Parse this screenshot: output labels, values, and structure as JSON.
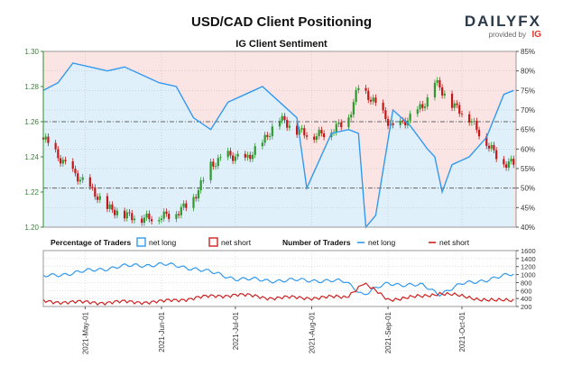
{
  "header": {
    "title": "USD/CAD Client Positioning",
    "logo_text": "DAILYFX",
    "provided_by": "provided by",
    "brand_mark": "IG"
  },
  "colors": {
    "long": "#3399ee",
    "short": "#cc2222",
    "long_zone": "#dff0fb",
    "short_zone": "#fbe4e4",
    "candle_up": "#2e9a2e",
    "candle_down": "#c41818",
    "price_axis": "#2e8b2e"
  },
  "chart_data": [
    {
      "type": "candlestick+line",
      "title": "IG Client Sentiment",
      "x_tick_labels": [
        "2021-May-01",
        "2021-Jun-01",
        "2021-Jul-01",
        "2021-Aug-01",
        "2021-Sep-01",
        "2021-Oct-01"
      ],
      "x_tick_dates": [
        "2021-05-01",
        "2021-06-01",
        "2021-07-01",
        "2021-08-01",
        "2021-09-01",
        "2021-10-01"
      ],
      "x_range": [
        "2021-04-14",
        "2021-10-23"
      ],
      "price_axis": {
        "side": "left",
        "ylim": [
          1.2,
          1.3
        ],
        "ticks": [
          "1.20",
          "1.22",
          "1.24",
          "1.26",
          "1.28",
          "1.30"
        ]
      },
      "percent_axis": {
        "side": "right",
        "ylim": [
          40,
          85
        ],
        "ticks": [
          "40%",
          "45%",
          "50%",
          "55%",
          "60%",
          "65%",
          "70%",
          "75%",
          "80%",
          "85%"
        ]
      },
      "reference_lines": {
        "dashed_percent": [
          50,
          67
        ]
      },
      "background": "light blue below 50% (net-long majority shading) up to the long line, light red above",
      "price_close_series": {
        "dates": [
          "2021-04-14",
          "2021-04-20",
          "2021-04-26",
          "2021-05-03",
          "2021-05-10",
          "2021-05-17",
          "2021-05-24",
          "2021-05-31",
          "2021-06-07",
          "2021-06-14",
          "2021-06-21",
          "2021-06-28",
          "2021-07-05",
          "2021-07-12",
          "2021-07-19",
          "2021-07-26",
          "2021-08-02",
          "2021-08-09",
          "2021-08-16",
          "2021-08-20",
          "2021-08-27",
          "2021-09-03",
          "2021-09-10",
          "2021-09-17",
          "2021-09-20",
          "2021-09-27",
          "2021-10-04",
          "2021-10-11",
          "2021-10-18",
          "2021-10-22"
        ],
        "close": [
          1.251,
          1.24,
          1.231,
          1.222,
          1.211,
          1.207,
          1.205,
          1.206,
          1.208,
          1.216,
          1.235,
          1.241,
          1.238,
          1.248,
          1.262,
          1.255,
          1.252,
          1.255,
          1.262,
          1.28,
          1.27,
          1.256,
          1.262,
          1.272,
          1.283,
          1.27,
          1.262,
          1.248,
          1.236,
          1.237
        ]
      },
      "net_long_percent": {
        "name": "net long",
        "dates": [
          "2021-04-14",
          "2021-04-20",
          "2021-04-26",
          "2021-05-03",
          "2021-05-10",
          "2021-05-17",
          "2021-05-24",
          "2021-05-31",
          "2021-06-07",
          "2021-06-14",
          "2021-06-21",
          "2021-06-28",
          "2021-07-05",
          "2021-07-12",
          "2021-07-19",
          "2021-07-26",
          "2021-07-30",
          "2021-08-09",
          "2021-08-16",
          "2021-08-20",
          "2021-08-23",
          "2021-08-27",
          "2021-09-03",
          "2021-09-10",
          "2021-09-17",
          "2021-09-20",
          "2021-09-23",
          "2021-09-27",
          "2021-10-04",
          "2021-10-11",
          "2021-10-18",
          "2021-10-22"
        ],
        "values": [
          75,
          77,
          82,
          81,
          80,
          81,
          79,
          77,
          76,
          68,
          65,
          72,
          74,
          76,
          72,
          68,
          50,
          64,
          65,
          64,
          40,
          43,
          70,
          66,
          60,
          58,
          49,
          56,
          58,
          63,
          74,
          75
        ]
      }
    },
    {
      "type": "line",
      "title": "Number of Traders",
      "ylim": [
        200,
        1600
      ],
      "y_ticks": [
        "200",
        "400",
        "600",
        "800",
        "1000",
        "1200",
        "1400",
        "1600"
      ],
      "series": [
        {
          "name": "net long",
          "dates": [
            "2021-04-14",
            "2021-05-01",
            "2021-05-15",
            "2021-06-01",
            "2021-06-15",
            "2021-07-01",
            "2021-07-15",
            "2021-08-01",
            "2021-08-15",
            "2021-08-22",
            "2021-09-01",
            "2021-09-15",
            "2021-09-22",
            "2021-10-01",
            "2021-10-15",
            "2021-10-22"
          ],
          "values": [
            950,
            1080,
            1200,
            1260,
            1150,
            900,
            850,
            860,
            820,
            500,
            780,
            720,
            520,
            760,
            920,
            1010
          ]
        },
        {
          "name": "net short",
          "dates": [
            "2021-04-14",
            "2021-05-01",
            "2021-05-15",
            "2021-06-01",
            "2021-06-15",
            "2021-07-01",
            "2021-07-15",
            "2021-08-01",
            "2021-08-15",
            "2021-08-22",
            "2021-09-01",
            "2021-09-15",
            "2021-09-22",
            "2021-10-01",
            "2021-10-15",
            "2021-10-22"
          ],
          "values": [
            330,
            300,
            310,
            320,
            420,
            500,
            420,
            420,
            440,
            780,
            380,
            450,
            540,
            450,
            340,
            360
          ]
        }
      ]
    }
  ],
  "legends": {
    "percentage": {
      "label": "Percentage of Traders",
      "items": [
        "net long",
        "net short"
      ]
    },
    "number": {
      "label": "Number of Traders",
      "items": [
        "net long",
        "net short"
      ]
    }
  }
}
